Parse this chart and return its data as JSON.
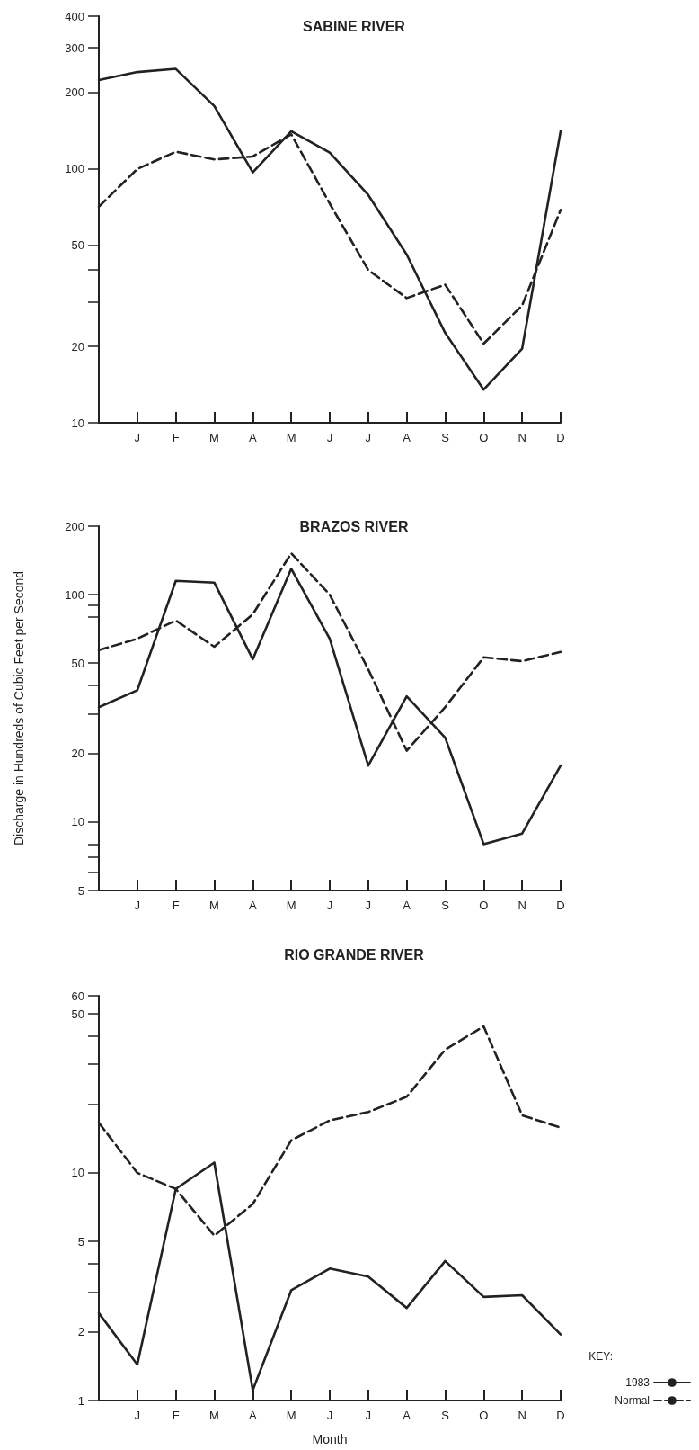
{
  "chart_data": [
    {
      "type": "line",
      "title": "SABINE RIVER",
      "categories": [
        null,
        "J",
        "F",
        "M",
        "A",
        "M",
        "J",
        "J",
        "A",
        "S",
        "O",
        "N",
        "D"
      ],
      "log": true,
      "ylim": [
        10,
        400
      ],
      "yticks": [
        10,
        20,
        {
          "value": 30,
          "label": null
        },
        {
          "value": 40,
          "label": null
        },
        50,
        100,
        200,
        300,
        400
      ],
      "series": [
        {
          "color": "#222222",
          "line_style": "solid",
          "values": [
            224,
            241,
            248,
            177,
            97,
            141,
            116,
            79,
            46,
            22.6,
            13.5,
            19.6,
            141
          ]
        },
        {
          "color": "#222222",
          "line_style": "dashed",
          "values": [
            71,
            100,
            117,
            109,
            112,
            137,
            73,
            40,
            31,
            35,
            20.5,
            29,
            69
          ]
        }
      ]
    },
    {
      "type": "line",
      "title": "BRAZOS RIVER",
      "ylabel": "Discharge in Hundreds of Cubic Feet per Second",
      "categories": [
        null,
        "J",
        "F",
        "M",
        "A",
        "M",
        "J",
        "J",
        "A",
        "S",
        "O",
        "N",
        "D"
      ],
      "log": true,
      "ylim": [
        5,
        200
      ],
      "yticks": [
        5,
        {
          "value": 6,
          "label": null
        },
        {
          "value": 7,
          "label": null
        },
        {
          "value": 8,
          "label": null
        },
        10,
        20,
        {
          "value": 30,
          "label": null
        },
        {
          "value": 40,
          "label": null
        },
        50,
        {
          "value": 80,
          "label": null
        },
        {
          "value": 90,
          "label": null
        },
        100,
        200
      ],
      "series": [
        {
          "color": "#222222",
          "line_style": "solid",
          "values": [
            32,
            38,
            115,
            113,
            52,
            130,
            64,
            17.7,
            35.7,
            23.5,
            8,
            8.9,
            17.7
          ]
        },
        {
          "color": "#222222",
          "line_style": "dashed",
          "values": [
            57,
            64,
            77,
            59,
            82,
            152,
            100,
            47,
            20.6,
            32,
            53,
            51,
            56
          ]
        }
      ]
    },
    {
      "type": "line",
      "title": "RIO GRANDE RIVER",
      "xlabel": "Month",
      "categories": [
        null,
        "J",
        "F",
        "M",
        "A",
        "M",
        "J",
        "J",
        "A",
        "S",
        "O",
        "N",
        "D"
      ],
      "log": true,
      "ylim": [
        1,
        60
      ],
      "yticks": [
        1,
        2,
        {
          "value": 3,
          "label": null
        },
        {
          "value": 4,
          "label": null
        },
        5,
        10,
        {
          "value": 20,
          "label": null
        },
        {
          "value": 30,
          "label": null
        },
        {
          "value": 40,
          "label": null
        },
        50,
        60
      ],
      "legend": "bottom right",
      "legend_title": "KEY:",
      "series": [
        {
          "name": "1983",
          "color": "#222222",
          "line_style": "solid",
          "values": [
            2.42,
            1.44,
            8.5,
            11.1,
            1.11,
            3.05,
            3.8,
            3.5,
            2.55,
            4.1,
            2.85,
            2.9,
            1.95
          ]
        },
        {
          "name": "Normal",
          "color": "#222222",
          "line_style": "dashed",
          "values": [
            16.6,
            10,
            8.5,
            5.3,
            7.3,
            13.9,
            17,
            18.5,
            21.6,
            34.8,
            44,
            17.9,
            15.8
          ]
        }
      ]
    }
  ]
}
